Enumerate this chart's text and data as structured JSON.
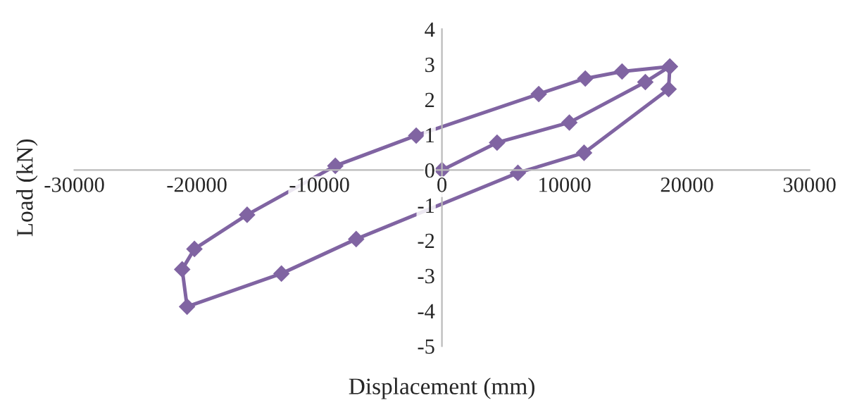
{
  "chart_data": {
    "type": "line",
    "xlabel": "Displacement (mm)",
    "ylabel": "Load (kN)",
    "series": [
      {
        "color": "#8064a2",
        "x": [
          0,
          4500,
          10400,
          16600,
          18600,
          18500,
          11600,
          6200,
          -7000,
          -13100,
          -20800,
          -21200,
          -20200,
          -15900,
          -8700,
          -2100,
          7900,
          11700,
          14700,
          18600
        ],
        "values": [
          0,
          0.78,
          1.35,
          2.5,
          2.94,
          2.3,
          0.49,
          -0.08,
          -1.96,
          -2.94,
          -3.88,
          -2.82,
          -2.24,
          -1.27,
          0.12,
          0.98,
          2.16,
          2.6,
          2.8,
          2.94
        ]
      }
    ],
    "xlim": [
      -30000,
      30000
    ],
    "xticks": [
      -30000,
      -20000,
      -10000,
      0,
      10000,
      20000,
      30000
    ],
    "ylim": [
      -5,
      4
    ],
    "yticks": [
      -5,
      -4,
      -3,
      -2,
      -1,
      0,
      1,
      2,
      3,
      4
    ],
    "grid": false,
    "legend": false,
    "marker": "diamond",
    "line_style": "solid"
  }
}
